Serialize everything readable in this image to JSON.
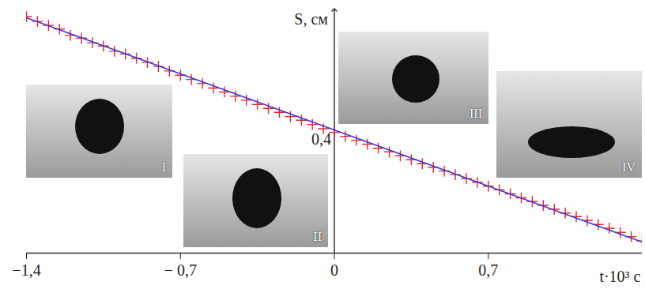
{
  "chart_data": {
    "type": "line",
    "x_label": "t·10³ с",
    "y_label": "S, см",
    "xlim": [
      -1.4,
      1.4
    ],
    "xticks": [
      {
        "value": -1.4,
        "label": "−1,4"
      },
      {
        "value": -0.7,
        "label": "− 0,7"
      },
      0,
      {
        "value": 0.7,
        "label": "0,7"
      }
    ],
    "ylim": [
      0,
      0.8
    ],
    "yticks": [
      {
        "value": 0.4,
        "label": "0,4"
      }
    ],
    "grid": false,
    "annotations": [
      "I",
      "II",
      "III",
      "IV"
    ],
    "series": [
      {
        "type": "scatter",
        "marker": "plus",
        "color": "#e8262b",
        "x": [
          -1.4,
          -1.35,
          -1.3,
          -1.25,
          -1.2,
          -1.15,
          -1.1,
          -1.05,
          -1.0,
          -0.95,
          -0.9,
          -0.85,
          -0.8,
          -0.75,
          -0.7,
          -0.65,
          -0.6,
          -0.55,
          -0.5,
          -0.45,
          -0.4,
          -0.35,
          -0.3,
          -0.25,
          -0.2,
          -0.15,
          -0.1,
          -0.05,
          0,
          0.05,
          0.1,
          0.15,
          0.2,
          0.25,
          0.3,
          0.35,
          0.4,
          0.45,
          0.5,
          0.55,
          0.6,
          0.65,
          0.7,
          0.75,
          0.8,
          0.85,
          0.9,
          0.95,
          1.0,
          1.05,
          1.1,
          1.15,
          1.2,
          1.25,
          1.3,
          1.35,
          1.4
        ],
        "values": [
          0.778,
          0.762,
          0.749,
          0.737,
          0.716,
          0.707,
          0.692,
          0.681,
          0.664,
          0.655,
          0.641,
          0.627,
          0.614,
          0.599,
          0.585,
          0.571,
          0.558,
          0.543,
          0.53,
          0.516,
          0.503,
          0.489,
          0.476,
          0.463,
          0.449,
          0.437,
          0.423,
          0.409,
          0.397,
          0.384,
          0.371,
          0.358,
          0.345,
          0.333,
          0.32,
          0.307,
          0.294,
          0.282,
          0.27,
          0.258,
          0.245,
          0.233,
          0.22,
          0.208,
          0.195,
          0.182,
          0.17,
          0.157,
          0.144,
          0.132,
          0.12,
          0.107,
          0.094,
          0.082,
          0.068,
          0.054,
          0.04
        ]
      },
      {
        "type": "line",
        "line_style": "solid",
        "color": "#3b3bd6",
        "x": [
          -1.4,
          1.4
        ],
        "values": [
          0.774,
          0.036
        ]
      }
    ]
  }
}
